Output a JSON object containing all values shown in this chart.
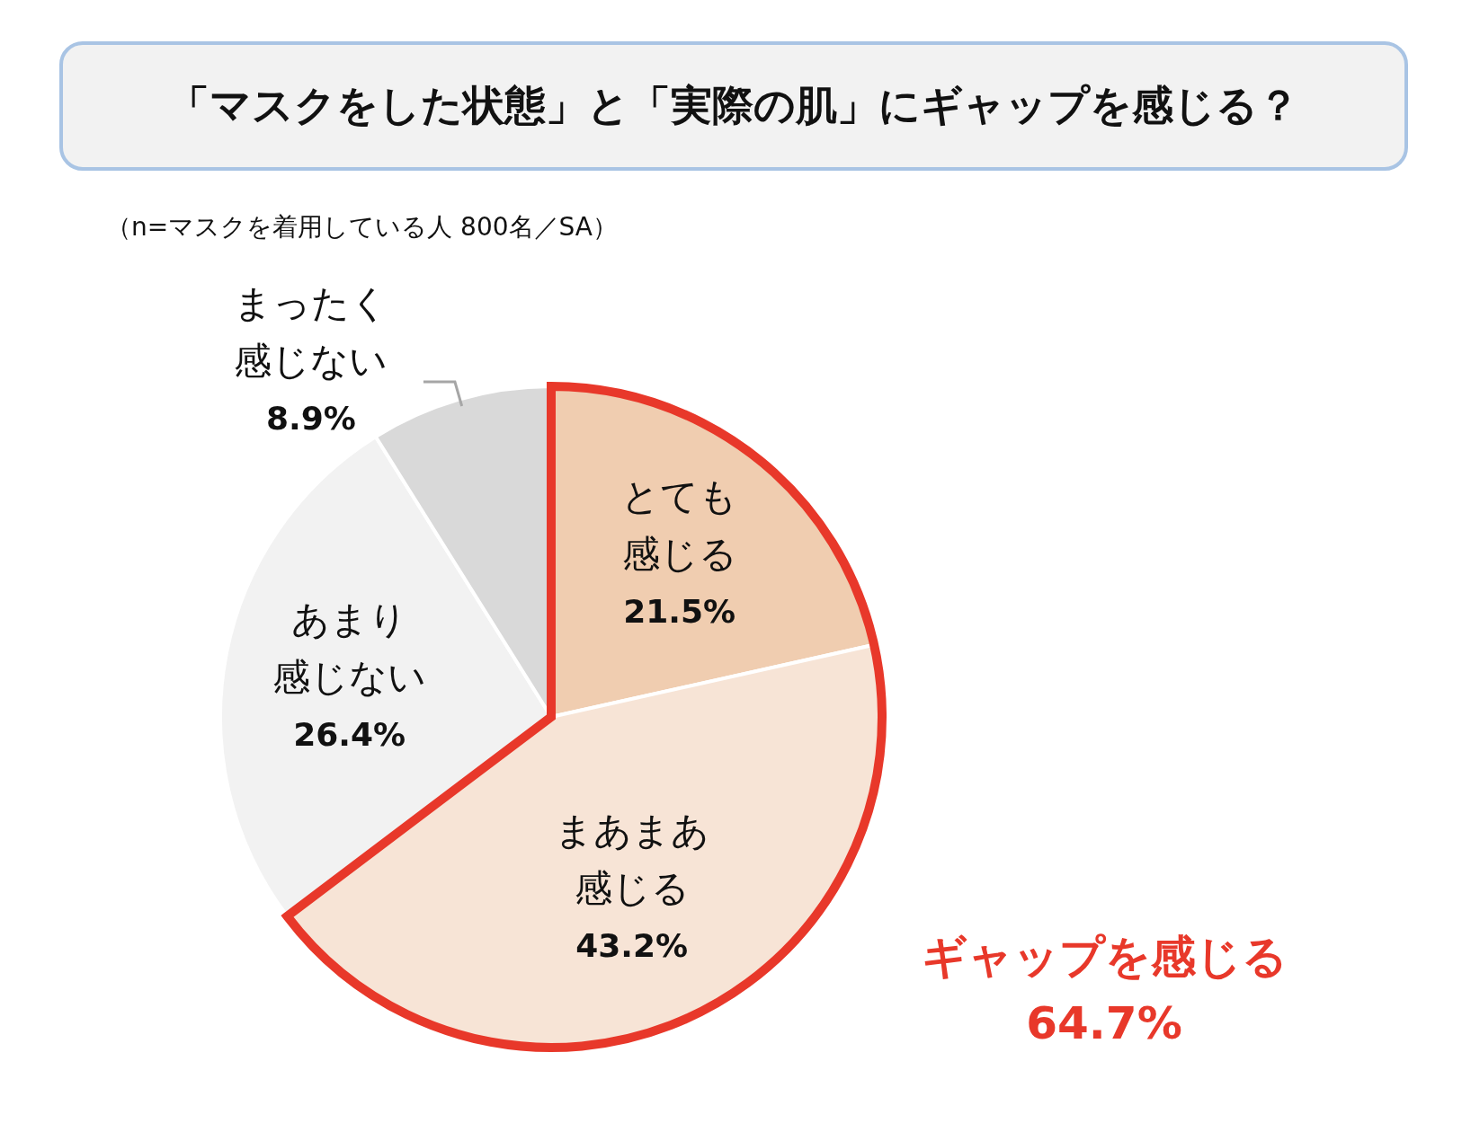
{
  "chart_data": {
    "type": "pie",
    "title": "「マスクをした状態」と「実際の肌」にギャップを感じる？",
    "subtitle": "（n=マスクを着用している人 800名／SA）",
    "categories": [
      "とても感じる",
      "まあまあ感じる",
      "あまり感じない",
      "まったく感じない"
    ],
    "values": [
      21.5,
      43.2,
      26.4,
      8.9
    ],
    "value_labels": [
      "21.5%",
      "43.2%",
      "26.4%",
      "8.9%"
    ],
    "colors": [
      "#f0cdb0",
      "#f7e4d6",
      "#f2f2f2",
      "#d9d9d9"
    ],
    "data_labels": true,
    "legend": false,
    "annotations": [
      "ギャップを感じる\n64.7%"
    ]
  }
}
